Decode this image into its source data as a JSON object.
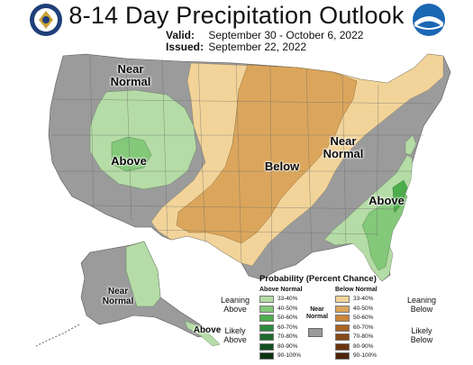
{
  "header": {
    "title": "8-14 Day Precipitation Outlook",
    "valid_label": "Valid:",
    "valid_dates": "September 30 - October 6, 2022",
    "issued_label": "Issued:",
    "issued_date": "September 22, 2022"
  },
  "logos": {
    "left": "doc-seal-icon",
    "right": "noaa-logo-icon",
    "right_text": "NOAA"
  },
  "map_labels": {
    "west_near_normal": "Near\nNormal",
    "west_above": "Above",
    "central_below": "Below",
    "east_near_normal": "Near\nNormal",
    "east_above": "Above",
    "alaska_near_normal": "Near\nNormal",
    "alaska_above": "Above"
  },
  "legend": {
    "title": "Probability (Percent Chance)",
    "above_head": "Above Normal",
    "below_head": "Below Normal",
    "near_normal": "Near\nNormal",
    "leaning_above": "Leaning\nAbove",
    "likely_above": "Likely\nAbove",
    "leaning_below": "Leaning\nBelow",
    "likely_below": "Likely\nBelow",
    "above": [
      {
        "range": "33-40%",
        "color": "#b5dca6"
      },
      {
        "range": "40-50%",
        "color": "#84c87a"
      },
      {
        "range": "50-60%",
        "color": "#4cad4c"
      },
      {
        "range": "60-70%",
        "color": "#2e8b3e"
      },
      {
        "range": "70-80%",
        "color": "#1e6b2e"
      },
      {
        "range": "80-90%",
        "color": "#124e20"
      },
      {
        "range": "90-100%",
        "color": "#0a3512"
      }
    ],
    "below": [
      {
        "range": "33-40%",
        "color": "#f2d49a"
      },
      {
        "range": "40-50%",
        "color": "#dba65c"
      },
      {
        "range": "50-60%",
        "color": "#c98638"
      },
      {
        "range": "60-70%",
        "color": "#a86424"
      },
      {
        "range": "70-80%",
        "color": "#854a18"
      },
      {
        "range": "80-90%",
        "color": "#6a3410"
      },
      {
        "range": "90-100%",
        "color": "#4d2208"
      }
    ],
    "near_normal_color": "#9b9b9b"
  }
}
